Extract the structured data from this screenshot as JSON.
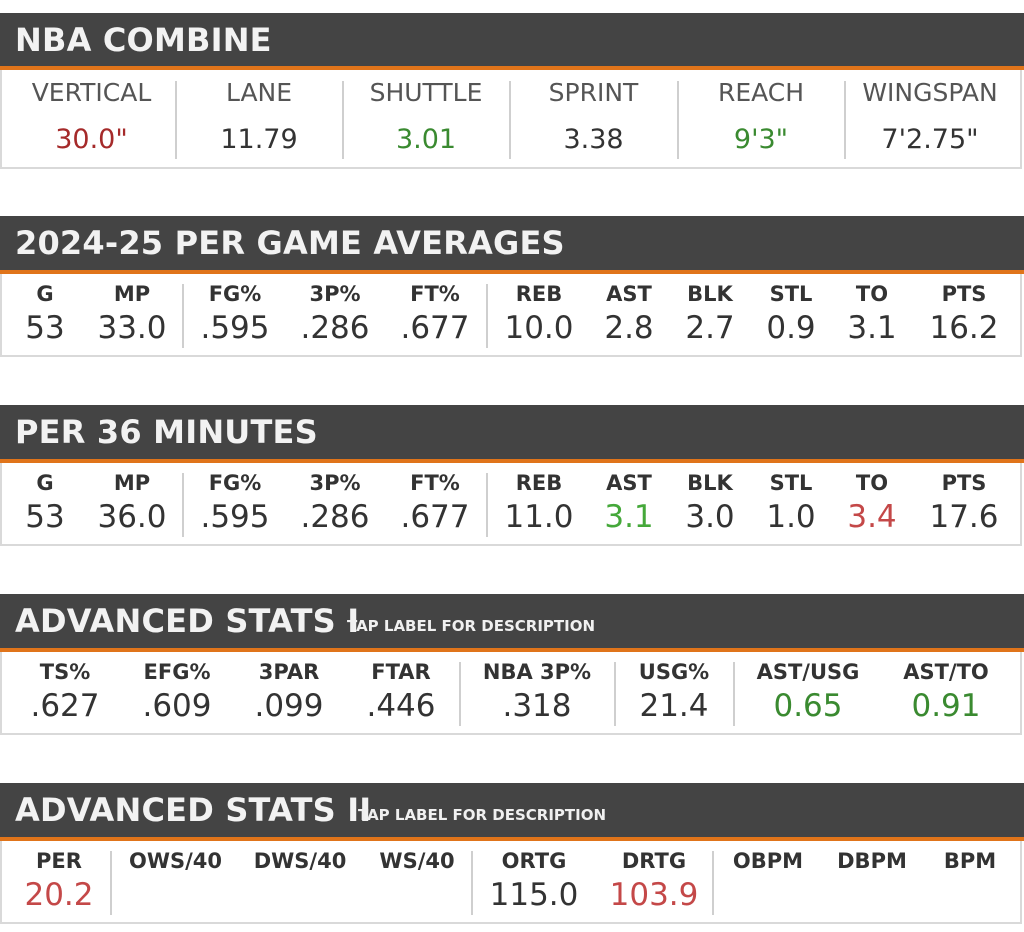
{
  "colors": {
    "header_bg": "#444444",
    "accent": "#e0741a",
    "green": "#3a8a30",
    "bright_green": "#45a83a",
    "red": "#a52a2a",
    "bright_red": "#c44848"
  },
  "combine": {
    "title": "NBA COMBINE",
    "items": [
      {
        "label": "VERTICAL",
        "value": "30.0\"",
        "color": "#a52a2a"
      },
      {
        "label": "LANE",
        "value": "11.79",
        "color": "#333333"
      },
      {
        "label": "SHUTTLE",
        "value": "3.01",
        "color": "#3a8a30"
      },
      {
        "label": "SPRINT",
        "value": "3.38",
        "color": "#333333"
      },
      {
        "label": "REACH",
        "value": "9'3\"",
        "color": "#3a8a30"
      },
      {
        "label": "WINGSPAN",
        "value": "7'2.75\"",
        "color": "#333333"
      }
    ]
  },
  "per_game": {
    "title": "2024-25 PER GAME AVERAGES",
    "stats": [
      {
        "label": "G",
        "value": "53",
        "color": "#333333"
      },
      {
        "label": "MP",
        "value": "33.0",
        "color": "#333333"
      },
      {
        "label": "FG%",
        "value": ".595",
        "color": "#333333"
      },
      {
        "label": "3P%",
        "value": ".286",
        "color": "#333333"
      },
      {
        "label": "FT%",
        "value": ".677",
        "color": "#333333"
      },
      {
        "label": "REB",
        "value": "10.0",
        "color": "#333333"
      },
      {
        "label": "AST",
        "value": "2.8",
        "color": "#333333"
      },
      {
        "label": "BLK",
        "value": "2.7",
        "color": "#333333"
      },
      {
        "label": "STL",
        "value": "0.9",
        "color": "#333333"
      },
      {
        "label": "TO",
        "value": "3.1",
        "color": "#333333"
      },
      {
        "label": "PTS",
        "value": "16.2",
        "color": "#333333"
      }
    ]
  },
  "per36": {
    "title": "PER 36 MINUTES",
    "stats": [
      {
        "label": "G",
        "value": "53",
        "color": "#333333"
      },
      {
        "label": "MP",
        "value": "36.0",
        "color": "#333333"
      },
      {
        "label": "FG%",
        "value": ".595",
        "color": "#333333"
      },
      {
        "label": "3P%",
        "value": ".286",
        "color": "#333333"
      },
      {
        "label": "FT%",
        "value": ".677",
        "color": "#333333"
      },
      {
        "label": "REB",
        "value": "11.0",
        "color": "#333333"
      },
      {
        "label": "AST",
        "value": "3.1",
        "color": "#45a83a"
      },
      {
        "label": "BLK",
        "value": "3.0",
        "color": "#333333"
      },
      {
        "label": "STL",
        "value": "1.0",
        "color": "#333333"
      },
      {
        "label": "TO",
        "value": "3.4",
        "color": "#c44848"
      },
      {
        "label": "PTS",
        "value": "17.6",
        "color": "#333333"
      }
    ]
  },
  "adv1": {
    "title": "ADVANCED STATS I",
    "subtitle": "TAP LABEL FOR DESCRIPTION",
    "stats": [
      {
        "label": "TS%",
        "value": ".627",
        "color": "#333333"
      },
      {
        "label": "EFG%",
        "value": ".609",
        "color": "#333333"
      },
      {
        "label": "3PAR",
        "value": ".099",
        "color": "#333333"
      },
      {
        "label": "FTAR",
        "value": ".446",
        "color": "#333333"
      },
      {
        "label": "NBA 3P%",
        "value": ".318",
        "color": "#333333"
      },
      {
        "label": "USG%",
        "value": "21.4",
        "color": "#333333"
      },
      {
        "label": "AST/USG",
        "value": "0.65",
        "color": "#3a8a30"
      },
      {
        "label": "AST/TO",
        "value": "0.91",
        "color": "#3a8a30"
      }
    ]
  },
  "adv2": {
    "title": "ADVANCED STATS II",
    "subtitle": "TAP LABEL FOR DESCRIPTION",
    "stats": [
      {
        "label": "PER",
        "value": "20.2",
        "color": "#c44848"
      },
      {
        "label": "OWS/40",
        "value": "",
        "color": "#333333"
      },
      {
        "label": "DWS/40",
        "value": "",
        "color": "#333333"
      },
      {
        "label": "WS/40",
        "value": "",
        "color": "#333333"
      },
      {
        "label": "ORTG",
        "value": "115.0",
        "color": "#333333"
      },
      {
        "label": "DRTG",
        "value": "103.9",
        "color": "#c44848"
      },
      {
        "label": "OBPM",
        "value": "",
        "color": "#333333"
      },
      {
        "label": "DBPM",
        "value": "",
        "color": "#333333"
      },
      {
        "label": "BPM",
        "value": "",
        "color": "#333333"
      }
    ]
  }
}
